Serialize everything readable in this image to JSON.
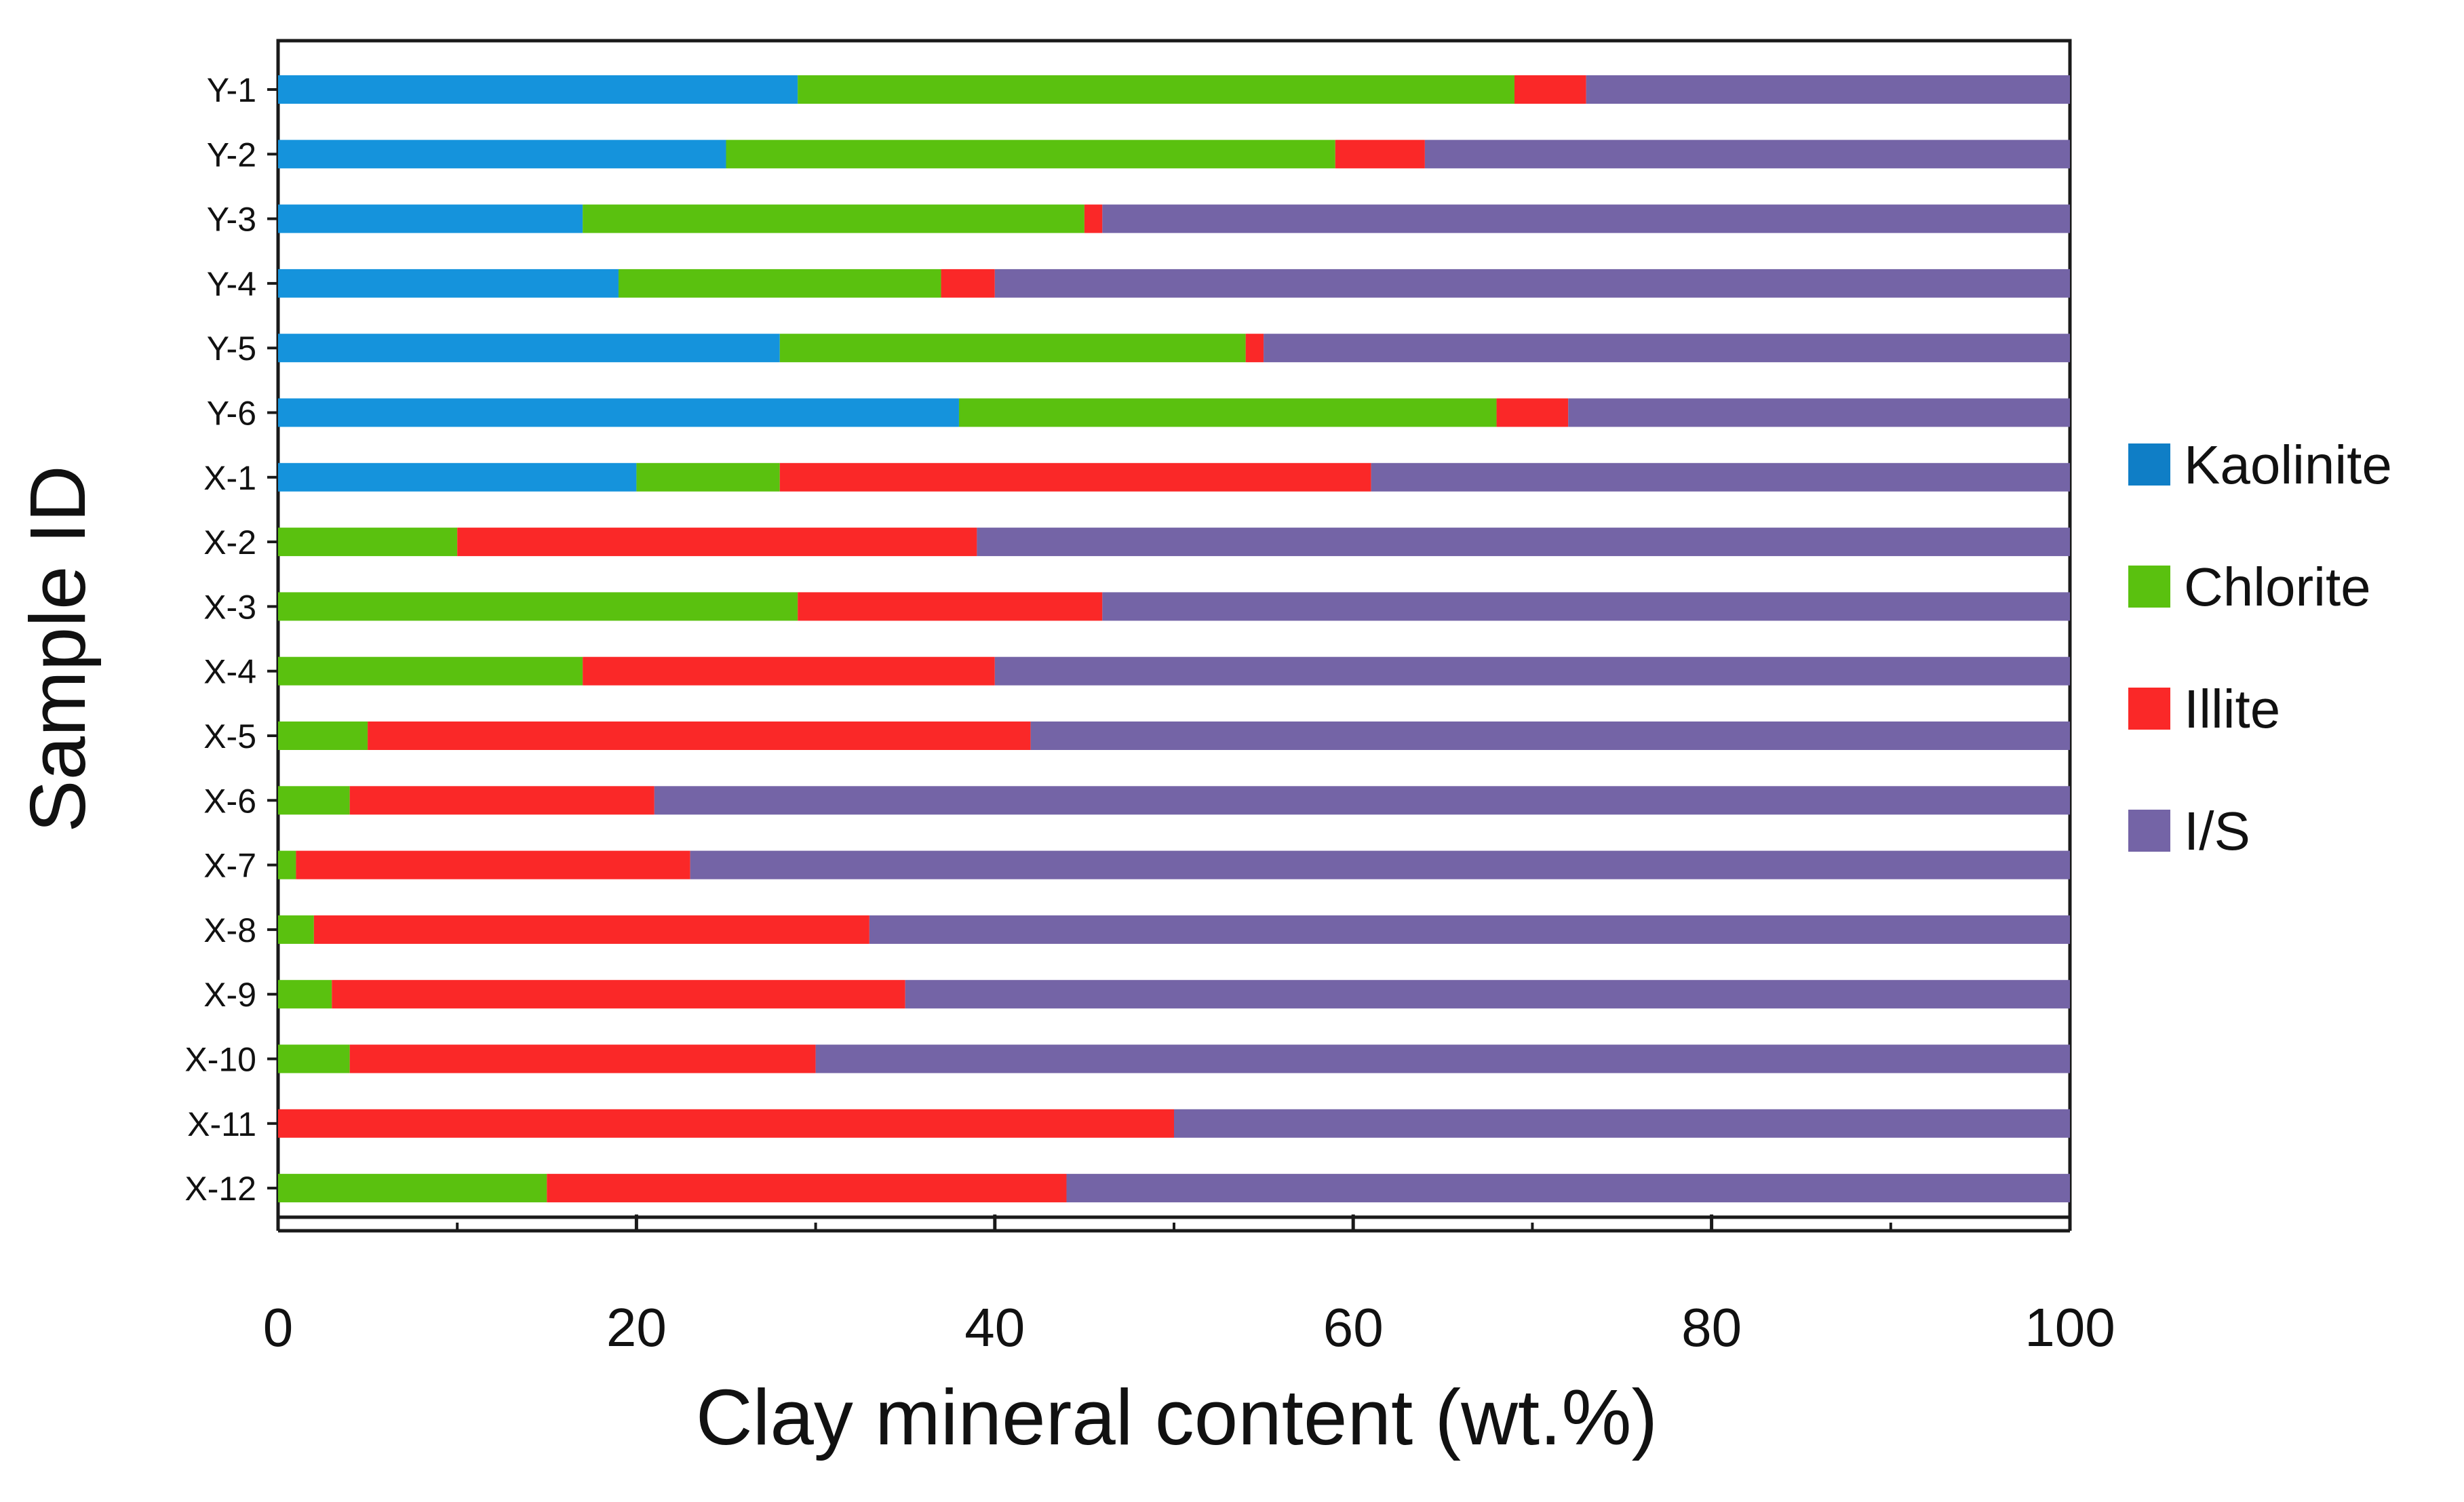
{
  "chart_data": {
    "type": "bar",
    "orientation": "horizontal",
    "stacked": true,
    "title": "",
    "xlabel": "Clay mineral content (wt.%)",
    "ylabel": "Sample ID",
    "xlim": [
      0,
      100
    ],
    "xticks": [
      "0",
      "20",
      "40",
      "60",
      "80",
      "100"
    ],
    "grid": false,
    "legend_position": "right",
    "categories": [
      "Y-1",
      "Y-2",
      "Y-3",
      "Y-4",
      "Y-5",
      "Y-6",
      "X-1",
      "X-2",
      "X-3",
      "X-4",
      "X-5",
      "X-6",
      "X-7",
      "X-8",
      "X-9",
      "X-10",
      "X-11",
      "X-12"
    ],
    "series": [
      {
        "name": "Kaolinite",
        "color": "#1593dc",
        "values": [
          29,
          25,
          17,
          19,
          28,
          38,
          20,
          0,
          0,
          0,
          0,
          0,
          0,
          0,
          0,
          0,
          0,
          0
        ]
      },
      {
        "name": "Chlorite",
        "color": "#5ac10f",
        "values": [
          40,
          34,
          28,
          18,
          26,
          30,
          8,
          10,
          29,
          17,
          5,
          4,
          1,
          2,
          3,
          4,
          0,
          15
        ]
      },
      {
        "name": "Illite",
        "color": "#fa2828",
        "values": [
          4,
          5,
          1,
          3,
          1,
          4,
          33,
          29,
          17,
          23,
          37,
          17,
          22,
          31,
          32,
          26,
          50,
          29
        ]
      },
      {
        "name": "I/S",
        "color": "#7464a6",
        "values": [
          27,
          36,
          54,
          60,
          45,
          28,
          39,
          61,
          54,
          60,
          58,
          79,
          77,
          67,
          65,
          70,
          50,
          56
        ]
      }
    ],
    "legend": [
      {
        "label": "Kaolinite",
        "color": "#0f7ec6"
      },
      {
        "label": "Chlorite",
        "color": "#5ac10f"
      },
      {
        "label": "Illite",
        "color": "#fa2828"
      },
      {
        "label": "I/S",
        "color": "#7464a6"
      }
    ]
  }
}
